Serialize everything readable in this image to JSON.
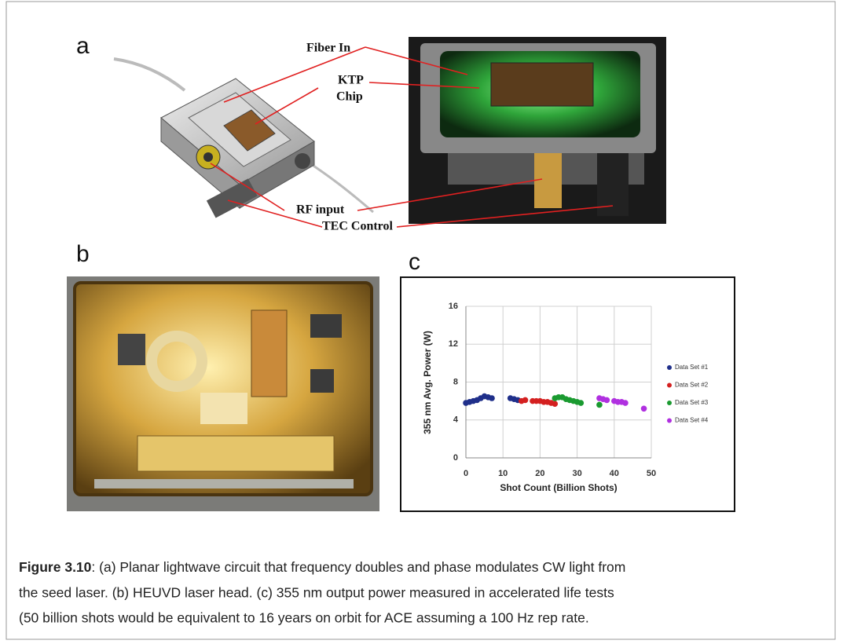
{
  "panels": {
    "a": {
      "label": "a",
      "callouts": [
        "Fiber In",
        "KTP",
        "Chip",
        "RF input",
        "TEC Control"
      ]
    },
    "b": {
      "label": "b"
    },
    "c": {
      "label": "c"
    }
  },
  "chart_data": {
    "type": "scatter",
    "x_label": "Shot Count (Billion Shots)",
    "y_label": "355 nm Avg. Power (W)",
    "xlim": [
      0,
      50
    ],
    "xticks": [
      0,
      10,
      20,
      30,
      40,
      50
    ],
    "ylim": [
      0,
      16
    ],
    "yticks": [
      0,
      4,
      8,
      12,
      16
    ],
    "grid": true,
    "legend": "right",
    "series": [
      {
        "name": "Data Set #1",
        "color": "#1f2f8a",
        "x": [
          0,
          1,
          2,
          3,
          4,
          5,
          6,
          7,
          12,
          13,
          14
        ],
        "values": [
          5.8,
          5.9,
          6.0,
          6.1,
          6.3,
          6.5,
          6.4,
          6.3,
          6.3,
          6.2,
          6.1
        ]
      },
      {
        "name": "Data Set #2",
        "color": "#d42020",
        "x": [
          15,
          16,
          18,
          19,
          20,
          21,
          22,
          23,
          24
        ],
        "values": [
          6.0,
          6.1,
          6.0,
          6.0,
          6.0,
          5.9,
          5.9,
          5.8,
          5.7
        ]
      },
      {
        "name": "Data Set #3",
        "color": "#1a9a30",
        "x": [
          24,
          25,
          26,
          27,
          28,
          29,
          30,
          31,
          36
        ],
        "values": [
          6.3,
          6.4,
          6.4,
          6.2,
          6.1,
          6.0,
          5.9,
          5.8,
          5.6
        ]
      },
      {
        "name": "Data Set #4",
        "color": "#b030e0",
        "x": [
          36,
          37,
          38,
          40,
          41,
          42,
          43,
          48
        ],
        "values": [
          6.3,
          6.2,
          6.1,
          6.0,
          5.9,
          5.9,
          5.8,
          5.2
        ]
      }
    ]
  },
  "caption": {
    "label": "Figure 3.10",
    "lines": [
      ": (a) Planar lightwave circuit that frequency doubles and phase modulates  CW light from",
      "the seed laser.  (b) HEUVD laser head.   (c) 355 nm output power measured  in accelerated  life tests",
      "(50 billion shots would be equivalent to 16 years on orbit for ACE assuming a 100 Hz rep rate."
    ]
  }
}
